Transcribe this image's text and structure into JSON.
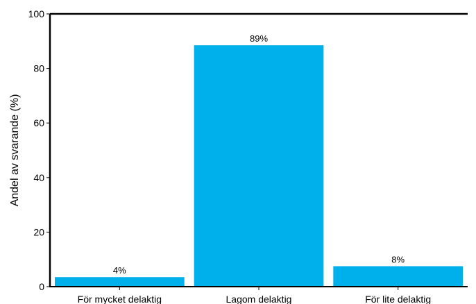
{
  "chart_data": {
    "type": "bar",
    "categories": [
      "För mycket delaktig",
      "Lagom delaktig",
      "För lite delaktig"
    ],
    "values": [
      3.5,
      88.5,
      7.5
    ],
    "data_labels": [
      "4%",
      "89%",
      "8%"
    ],
    "title": "",
    "xlabel": "",
    "ylabel": "Andel av svarande (%)",
    "ylim": [
      0,
      100
    ],
    "yticks": [
      0,
      20,
      40,
      60,
      80,
      100
    ],
    "grid": false,
    "legend": "none",
    "colors": {
      "bar": "#00b0ea",
      "axis": "#000000"
    }
  }
}
